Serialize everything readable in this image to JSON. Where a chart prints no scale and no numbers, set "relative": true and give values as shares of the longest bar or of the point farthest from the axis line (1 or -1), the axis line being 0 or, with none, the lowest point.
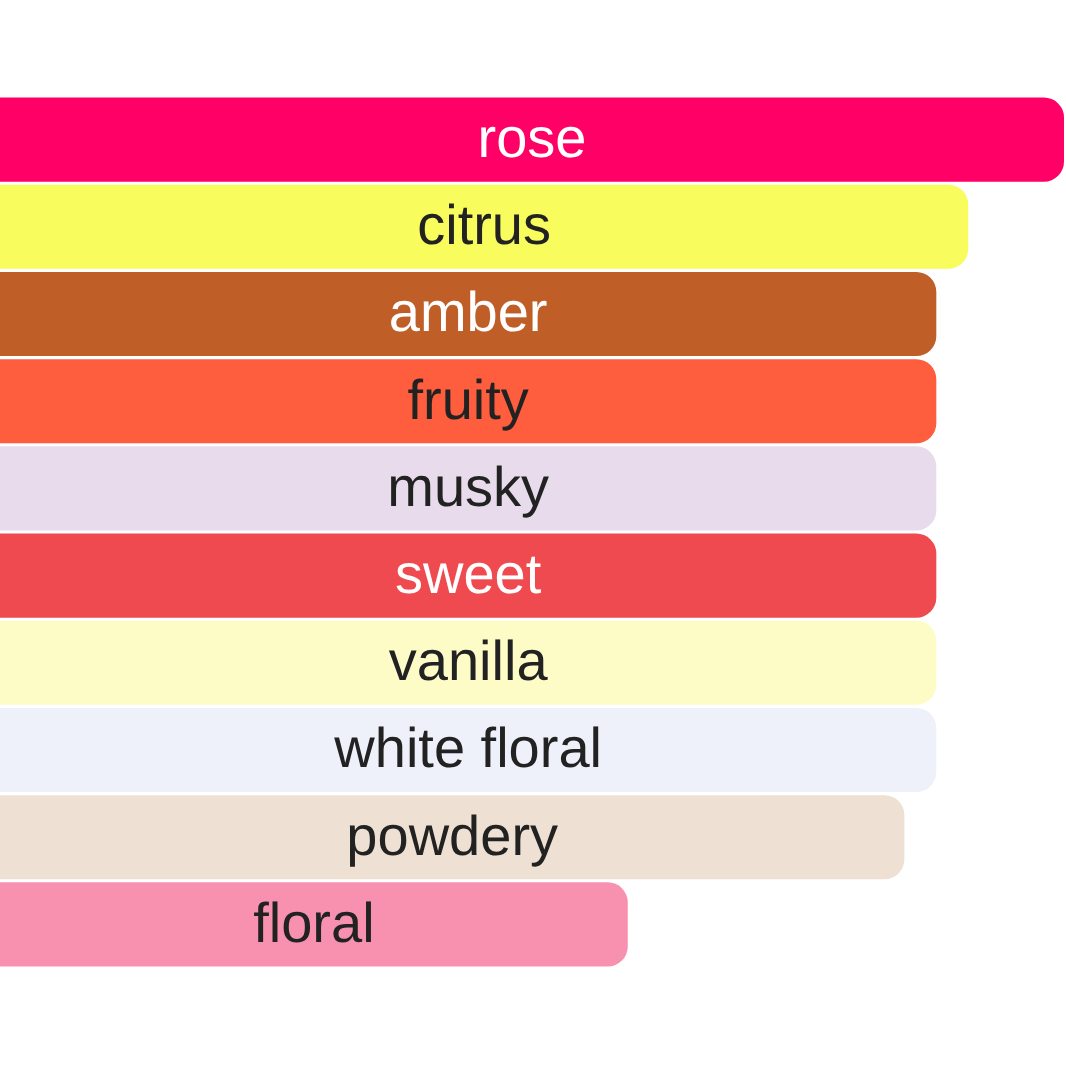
{
  "chart_data": {
    "type": "bar",
    "orientation": "horizontal",
    "relative": true,
    "categories": [
      "rose",
      "citrus",
      "amber",
      "fruity",
      "musky",
      "sweet",
      "vanilla",
      "white floral",
      "powdery",
      "floral"
    ],
    "values": [
      1,
      0.91,
      0.88,
      0.88,
      0.88,
      0.88,
      0.88,
      0.88,
      0.85,
      0.59
    ],
    "colors": [
      "#ff0066",
      "#f8fc5c",
      "#c05e28",
      "#fe5e3e",
      "#e8dcec",
      "#ee4a50",
      "#fefcc6",
      "#eef1fa",
      "#eee0d2",
      "#f891b0"
    ],
    "legend": false
  }
}
